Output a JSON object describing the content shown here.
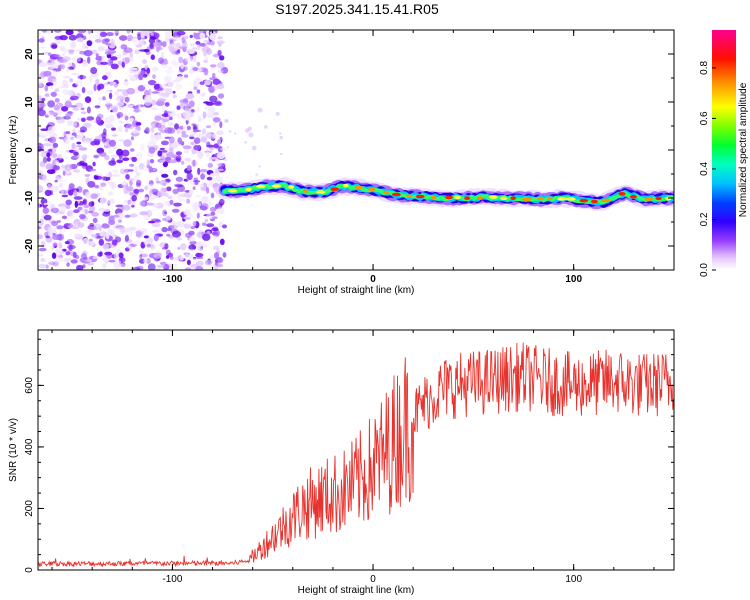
{
  "title": "S197.2025.341.15.41.R05",
  "chart_data": [
    {
      "type": "heatmap",
      "xlabel": "Height of straight line (km)",
      "ylabel": "Frequency (Hz)",
      "xlim": [
        -167,
        150
      ],
      "ylim": [
        -25,
        25
      ],
      "xticks": [
        -100,
        0,
        100
      ],
      "yticks": [
        -20,
        -10,
        0,
        10,
        20
      ],
      "noise_region_x": [
        -167,
        -74
      ],
      "signal_start_x": -74,
      "signal_track": [
        [
          -74,
          -8.5
        ],
        [
          -65,
          -8.5
        ],
        [
          -55,
          -7.7
        ],
        [
          -45,
          -7.4
        ],
        [
          -35,
          -8.6
        ],
        [
          -25,
          -8.8
        ],
        [
          -15,
          -7.5
        ],
        [
          -5,
          -8.0
        ],
        [
          5,
          -8.8
        ],
        [
          15,
          -9.5
        ],
        [
          25,
          -9.7
        ],
        [
          35,
          -10.0
        ],
        [
          45,
          -10.1
        ],
        [
          55,
          -9.8
        ],
        [
          65,
          -10.0
        ],
        [
          75,
          -10.1
        ],
        [
          85,
          -10.3
        ],
        [
          95,
          -10.0
        ],
        [
          105,
          -10.6
        ],
        [
          115,
          -10.9
        ],
        [
          125,
          -9.0
        ],
        [
          135,
          -10.2
        ],
        [
          150,
          -10.0
        ]
      ],
      "colorbar": {
        "label": "Normalized spectral amplitude",
        "ticks": [
          "0.0",
          "0.2",
          "0.4",
          "0.6",
          "0.8"
        ],
        "range": [
          0,
          0.95
        ]
      }
    },
    {
      "type": "line",
      "xlabel": "Height of straight line (km)",
      "ylabel": "SNR (10 * v/v)",
      "xlim": [
        -167,
        150
      ],
      "ylim": [
        0,
        780
      ],
      "xticks": [
        -100,
        0,
        100
      ],
      "yticks": [
        0,
        200,
        400,
        600
      ],
      "color": "#e8322d",
      "series": [
        {
          "name": "SNR",
          "envelope": [
            [
              -167,
              20
            ],
            [
              -70,
              22
            ],
            [
              -62,
              30
            ],
            [
              -55,
              75
            ],
            [
              -45,
              140
            ],
            [
              -35,
              205
            ],
            [
              -25,
              235
            ],
            [
              -15,
              255
            ],
            [
              -5,
              300
            ],
            [
              5,
              370
            ],
            [
              15,
              460
            ],
            [
              25,
              540
            ],
            [
              35,
              590
            ],
            [
              45,
              605
            ],
            [
              55,
              610
            ],
            [
              65,
              620
            ],
            [
              75,
              630
            ],
            [
              85,
              615
            ],
            [
              100,
              600
            ],
            [
              110,
              605
            ],
            [
              120,
              615
            ],
            [
              135,
              600
            ],
            [
              150,
              610
            ]
          ]
        }
      ]
    }
  ]
}
